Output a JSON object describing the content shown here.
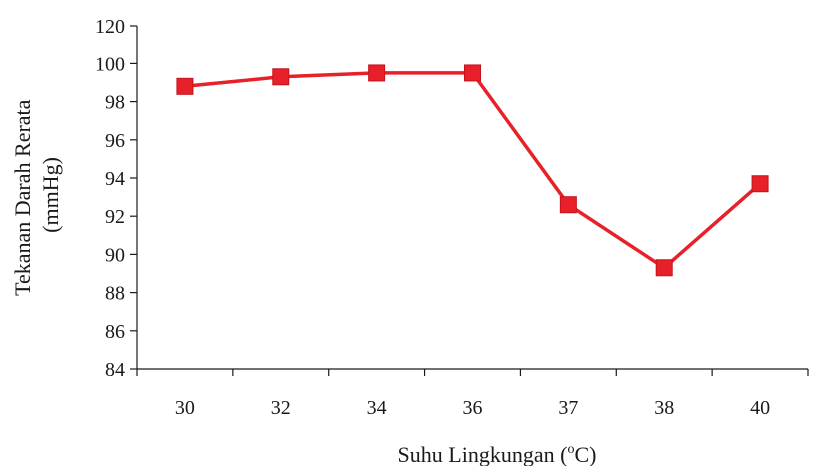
{
  "chart_data": {
    "type": "line",
    "categories": [
      "30",
      "32",
      "34",
      "36",
      "37",
      "38",
      "40"
    ],
    "series": [
      {
        "values": [
          98.8,
          99.3,
          99.5,
          99.5,
          92.6,
          89.3,
          93.7
        ]
      }
    ],
    "ylim": [
      84,
      120
    ],
    "yticks": [
      84,
      86,
      88,
      90,
      92,
      94,
      96,
      98,
      100,
      120
    ],
    "xlabel": {
      "prefix": "Suhu Lingkungan (",
      "sup": "o",
      "suffix": "C)"
    },
    "ylabel": [
      "Tekanan Darah Rerata",
      "(mmHg)"
    ],
    "grid": false,
    "legend": "none",
    "colors": {
      "line": "#e8202a",
      "marker": "#e8202a",
      "axis": "#1a1a1a"
    }
  }
}
